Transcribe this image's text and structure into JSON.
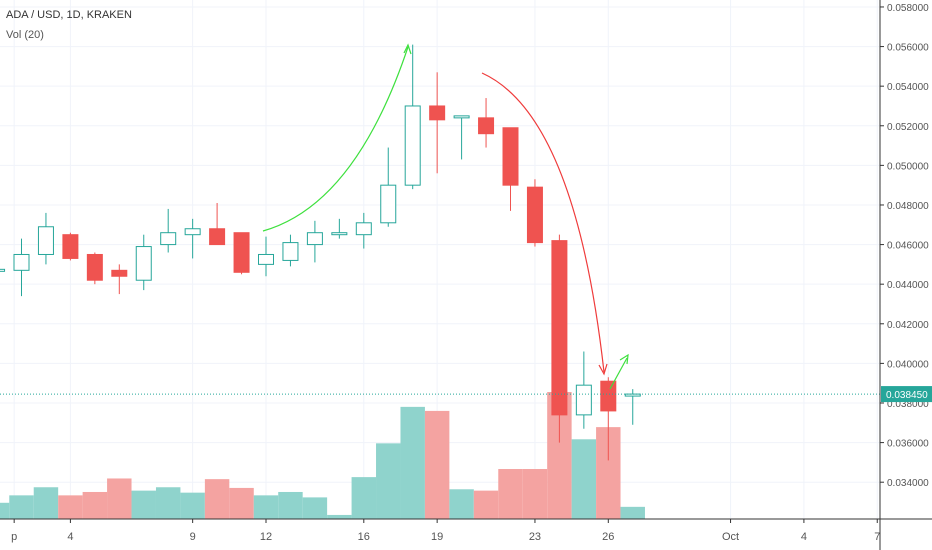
{
  "header": {
    "symbol": "ADA / USD, 1D, KRAKEN",
    "volume_label": "Vol (20)"
  },
  "colors": {
    "up": "#26a69a",
    "up_volume": "#8fd3cc",
    "down": "#ef5350",
    "down_volume": "#f4a3a1",
    "price_line": "#26a69a",
    "annotation_up": "#3ee03e",
    "annotation_down": "#ef3b3b",
    "axis_text": "#555555",
    "grid": "#f0f3fa"
  },
  "chart_data": {
    "type": "candlestick",
    "price_axis": {
      "ylim": [
        0.033,
        0.0582
      ],
      "ticks": [
        "0.058000",
        "0.056000",
        "0.054000",
        "0.052000",
        "0.050000",
        "0.048000",
        "0.046000",
        "0.044000",
        "0.042000",
        "0.040000",
        "0.038000",
        "0.036000",
        "0.034000"
      ],
      "current_price": "0.038450"
    },
    "time_axis": {
      "labels": [
        {
          "text": "p",
          "day_index": -0.3
        },
        {
          "text": "4",
          "day_index": 2
        },
        {
          "text": "9",
          "day_index": 7
        },
        {
          "text": "12",
          "day_index": 10
        },
        {
          "text": "16",
          "day_index": 14
        },
        {
          "text": "19",
          "day_index": 17
        },
        {
          "text": "23",
          "day_index": 21
        },
        {
          "text": "26",
          "day_index": 24
        },
        {
          "text": "Oct",
          "day_index": 29
        },
        {
          "text": "4",
          "day_index": 32
        },
        {
          "text": "7",
          "day_index": 35
        }
      ]
    },
    "candles": [
      {
        "day_index": -1,
        "open": 0.0447,
        "high": 0.045,
        "low": 0.0446,
        "close": 0.04475,
        "volume": 120
      },
      {
        "day_index": 0,
        "open": 0.0447,
        "high": 0.0463,
        "low": 0.0434,
        "close": 0.0455,
        "volume": 175
      },
      {
        "day_index": 1,
        "open": 0.0455,
        "high": 0.0476,
        "low": 0.045,
        "close": 0.0469,
        "volume": 235
      },
      {
        "day_index": 2,
        "open": 0.0465,
        "high": 0.0466,
        "low": 0.0452,
        "close": 0.0453,
        "volume": 175
      },
      {
        "day_index": 3,
        "open": 0.0455,
        "high": 0.0456,
        "low": 0.044,
        "close": 0.0442,
        "volume": 200
      },
      {
        "day_index": 4,
        "open": 0.0447,
        "high": 0.045,
        "low": 0.0435,
        "close": 0.0444,
        "volume": 300
      },
      {
        "day_index": 5,
        "open": 0.0442,
        "high": 0.0465,
        "low": 0.0437,
        "close": 0.0459,
        "volume": 210
      },
      {
        "day_index": 6,
        "open": 0.046,
        "high": 0.0478,
        "low": 0.0456,
        "close": 0.0466,
        "volume": 235
      },
      {
        "day_index": 7,
        "open": 0.0465,
        "high": 0.0473,
        "low": 0.0453,
        "close": 0.0468,
        "volume": 195
      },
      {
        "day_index": 8,
        "open": 0.0468,
        "high": 0.0481,
        "low": 0.0461,
        "close": 0.046,
        "volume": 295
      },
      {
        "day_index": 9,
        "open": 0.0466,
        "high": 0.0466,
        "low": 0.0445,
        "close": 0.0446,
        "volume": 230
      },
      {
        "day_index": 10,
        "open": 0.045,
        "high": 0.0464,
        "low": 0.0444,
        "close": 0.0455,
        "volume": 175
      },
      {
        "day_index": 11,
        "open": 0.0452,
        "high": 0.0465,
        "low": 0.0449,
        "close": 0.0461,
        "volume": 200
      },
      {
        "day_index": 12,
        "open": 0.046,
        "high": 0.0472,
        "low": 0.0451,
        "close": 0.0466,
        "volume": 160
      },
      {
        "day_index": 13,
        "open": 0.0465,
        "high": 0.0473,
        "low": 0.0463,
        "close": 0.0466,
        "volume": 30
      },
      {
        "day_index": 14,
        "open": 0.0465,
        "high": 0.0476,
        "low": 0.0458,
        "close": 0.0471,
        "volume": 310
      },
      {
        "day_index": 15,
        "open": 0.0471,
        "high": 0.0509,
        "low": 0.0469,
        "close": 0.049,
        "volume": 560
      },
      {
        "day_index": 16,
        "open": 0.049,
        "high": 0.0561,
        "low": 0.0488,
        "close": 0.053,
        "volume": 830
      },
      {
        "day_index": 17,
        "open": 0.053,
        "high": 0.0547,
        "low": 0.0496,
        "close": 0.0523,
        "volume": 800
      },
      {
        "day_index": 18,
        "open": 0.0524,
        "high": 0.0525,
        "low": 0.0503,
        "close": 0.0525,
        "volume": 220
      },
      {
        "day_index": 19,
        "open": 0.0524,
        "high": 0.0534,
        "low": 0.0509,
        "close": 0.0516,
        "volume": 210
      },
      {
        "day_index": 20,
        "open": 0.0519,
        "high": 0.0519,
        "low": 0.0477,
        "close": 0.049,
        "volume": 370
      },
      {
        "day_index": 21,
        "open": 0.0489,
        "high": 0.0493,
        "low": 0.0459,
        "close": 0.0461,
        "volume": 370
      },
      {
        "day_index": 22,
        "open": 0.0462,
        "high": 0.0465,
        "low": 0.036,
        "close": 0.0374,
        "volume": 940
      },
      {
        "day_index": 23,
        "open": 0.0374,
        "high": 0.0406,
        "low": 0.0367,
        "close": 0.0389,
        "volume": 590
      },
      {
        "day_index": 24,
        "open": 0.0391,
        "high": 0.0393,
        "low": 0.0351,
        "close": 0.0376,
        "volume": 680
      },
      {
        "day_index": 25,
        "open": 0.03835,
        "high": 0.0387,
        "low": 0.0369,
        "close": 0.03845,
        "volume": 90
      }
    ]
  }
}
